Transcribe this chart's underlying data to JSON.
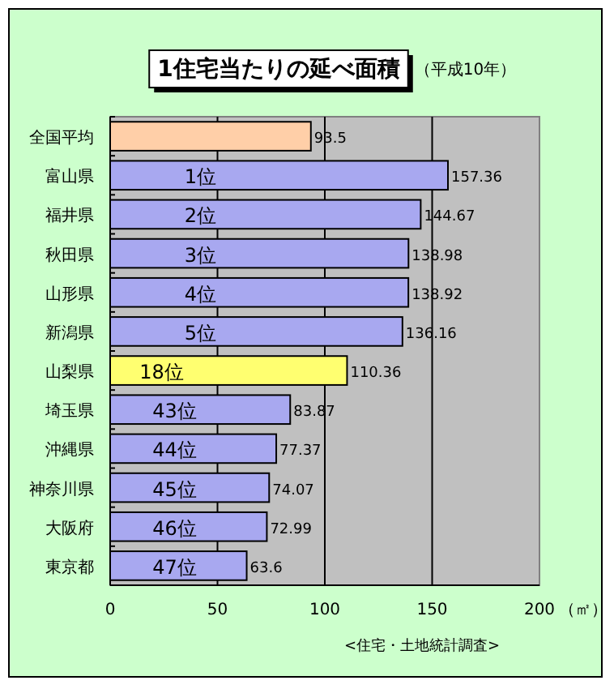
{
  "chart_data": {
    "type": "bar",
    "orientation": "horizontal",
    "title": "1住宅当たりの延べ面積",
    "subtitle": "（平成10年）",
    "xlabel": "（㎡）",
    "categories": [
      "全国平均",
      "富山県",
      "福井県",
      "秋田県",
      "山形県",
      "新潟県",
      "山梨県",
      "埼玉県",
      "沖縄県",
      "神奈川県",
      "大阪府",
      "東京都"
    ],
    "values": [
      93.5,
      157.36,
      144.67,
      138.98,
      138.92,
      136.16,
      110.36,
      83.87,
      77.37,
      74.07,
      72.99,
      63.6
    ],
    "colors": [
      "#ffcfa8",
      "#a8a8f0",
      "#a8a8f0",
      "#a8a8f0",
      "#a8a8f0",
      "#a8a8f0",
      "#ffff70",
      "#a8a8f0",
      "#a8a8f0",
      "#a8a8f0",
      "#a8a8f0",
      "#a8a8f0"
    ],
    "data_labels": true,
    "xlim": [
      0,
      200
    ],
    "xticks": [
      0,
      50,
      100,
      150,
      200
    ],
    "grid": "x",
    "annotations": [
      {
        "text": "1位",
        "x": 42,
        "y": "富山県"
      },
      {
        "text": "2位",
        "x": 42,
        "y": "福井県"
      },
      {
        "text": "3位",
        "x": 42,
        "y": "秋田県"
      },
      {
        "text": "4位",
        "x": 42,
        "y": "山形県"
      },
      {
        "text": "5位",
        "x": 42,
        "y": "新潟県"
      },
      {
        "text": "18位",
        "x": 24,
        "y": "山梨県"
      },
      {
        "text": "43位",
        "x": 30,
        "y": "埼玉県"
      },
      {
        "text": "44位",
        "x": 30,
        "y": "沖縄県"
      },
      {
        "text": "45位",
        "x": 30,
        "y": "神奈川県"
      },
      {
        "text": "46位",
        "x": 30,
        "y": "大阪府"
      },
      {
        "text": "47位",
        "x": 30,
        "y": "東京都"
      },
      "<住宅・土地統計調査>"
    ]
  }
}
